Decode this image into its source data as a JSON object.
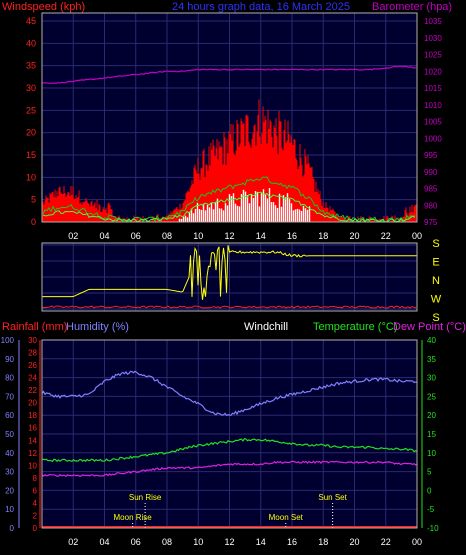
{
  "colors": {
    "wind": "#ff2020",
    "gust_fill": "#ff0000",
    "wind_green": "#20c020",
    "wind_white": "#ffffff",
    "barometer": "#c000c0",
    "title": "#3030ff",
    "direction": "#ffff00",
    "rain": "#ff2020",
    "humidity": "#8080ff",
    "temperature": "#20e020",
    "dewpoint": "#e020e0",
    "plot_bg": "#000030",
    "grid": "#2a2a70"
  },
  "top": {
    "title": "24 hours graph data, 16 March 2025",
    "left_label": "Windspeed (kph)",
    "right_label": "Barometer (hpa)"
  },
  "middle": {
    "direction_labels": [
      "S",
      "E",
      "N",
      "W",
      "S"
    ]
  },
  "bottom": {
    "rain_label": "Rainfall (mm)",
    "humidity_label": "Humidity (%)",
    "windchill_label": "Windchill",
    "temperature_label": "Temperature (°C)",
    "dewpoint_label": "Dew Point (°C)",
    "sun_rise": "Sun Rise",
    "sun_set": "Sun Set",
    "moon_rise": "Moon Rise",
    "moon_set": "Moon Set"
  },
  "chart_data": [
    {
      "type": "area",
      "title": "24 hours graph data, 16 March 2025",
      "ylabel": "Windspeed (kph)",
      "y2label": "Barometer (hpa)",
      "x_ticks": [
        "02",
        "04",
        "06",
        "08",
        "10",
        "12",
        "14",
        "16",
        "18",
        "20",
        "22",
        "00"
      ],
      "ylim": [
        0,
        45
      ],
      "y_ticks": [
        0,
        5,
        10,
        15,
        20,
        25,
        30,
        35,
        40,
        45
      ],
      "y2lim": [
        975,
        1035
      ],
      "y2_ticks": [
        975,
        980,
        985,
        990,
        995,
        1000,
        1005,
        1010,
        1015,
        1020,
        1025,
        1030,
        1035
      ],
      "hours": [
        0,
        1,
        2,
        3,
        4,
        5,
        6,
        7,
        8,
        9,
        10,
        11,
        12,
        13,
        14,
        15,
        16,
        17,
        18,
        19,
        20,
        21,
        22,
        23,
        24
      ],
      "series": [
        {
          "name": "Windspeed (kph)",
          "values": [
            3,
            5,
            5,
            3,
            1,
            0,
            0,
            0,
            1,
            3,
            9,
            11,
            13,
            15,
            17,
            15,
            13,
            9,
            3,
            1,
            0,
            0,
            0,
            0,
            2
          ]
        },
        {
          "name": "Barometer (hpa)",
          "values": [
            1016.5,
            1016.5,
            1017,
            1017.5,
            1018,
            1018.5,
            1019,
            1019.5,
            1020,
            1020,
            1020.5,
            1020.5,
            1020.5,
            1020.5,
            1020.5,
            1020.5,
            1020.5,
            1020.5,
            1020.5,
            1020.5,
            1020.5,
            1020.5,
            1021,
            1021.5,
            1021
          ]
        }
      ]
    },
    {
      "type": "line",
      "x_ticks": [
        "02",
        "04",
        "06",
        "08",
        "10",
        "12",
        "14",
        "16",
        "18",
        "20",
        "22",
        "00"
      ],
      "direction_axis": [
        "S",
        "E",
        "N",
        "W",
        "S"
      ],
      "hours": [
        0,
        1,
        2,
        3,
        4,
        5,
        6,
        7,
        8,
        9,
        10,
        11,
        12,
        13,
        14,
        15,
        16,
        17,
        18,
        19,
        20,
        21,
        22,
        23,
        24
      ],
      "series": [
        {
          "name": "Wind direction (deg)",
          "values": [
            70,
            70,
            70,
            110,
            110,
            110,
            110,
            110,
            110,
            95,
            300,
            300,
            320,
            320,
            320,
            320,
            300,
            300,
            300,
            300,
            300,
            300,
            300,
            300,
            300
          ]
        }
      ]
    },
    {
      "type": "line",
      "x_ticks": [
        "02",
        "04",
        "06",
        "08",
        "10",
        "12",
        "14",
        "16",
        "18",
        "20",
        "22",
        "00"
      ],
      "humidity_lim": [
        0,
        100
      ],
      "humidity_ticks": [
        0,
        10,
        20,
        30,
        40,
        50,
        60,
        70,
        80,
        90,
        100
      ],
      "rain_lim": [
        0,
        30
      ],
      "rain_ticks": [
        0,
        2,
        4,
        6,
        8,
        10,
        12,
        14,
        16,
        18,
        20,
        22,
        24,
        26,
        28,
        30
      ],
      "temp_lim": [
        -10,
        40
      ],
      "temp_ticks": [
        -10,
        -5,
        0,
        5,
        10,
        15,
        20,
        25,
        30,
        35,
        40
      ],
      "hours": [
        0,
        1,
        2,
        3,
        4,
        5,
        6,
        7,
        8,
        9,
        10,
        11,
        12,
        13,
        14,
        15,
        16,
        17,
        18,
        19,
        20,
        21,
        22,
        23,
        24
      ],
      "series": [
        {
          "name": "Humidity (%)",
          "values": [
            72,
            70,
            70,
            71,
            78,
            82,
            83,
            80,
            75,
            70,
            66,
            61,
            60,
            63,
            66,
            69,
            71,
            73,
            75,
            77,
            78,
            79,
            79,
            78,
            78
          ]
        },
        {
          "name": "Temperature (°C)",
          "values": [
            8,
            8,
            8,
            8,
            8,
            8.5,
            9,
            9.5,
            10,
            11,
            12,
            12.5,
            13,
            13.5,
            13.5,
            13,
            12.5,
            12,
            12,
            11.5,
            11.5,
            11.5,
            11,
            11,
            10.5
          ]
        },
        {
          "name": "Dew Point (°C)",
          "values": [
            4,
            4,
            4,
            4,
            4,
            4.5,
            5,
            5.5,
            6,
            6,
            6,
            6.5,
            7,
            7,
            7,
            7.5,
            7.5,
            7.5,
            7.5,
            7.5,
            7.5,
            7.5,
            7.5,
            7,
            7
          ]
        },
        {
          "name": "Rainfall (mm)",
          "values": [
            0,
            0,
            0,
            0,
            0,
            0,
            0,
            0,
            0,
            0,
            0,
            0,
            0,
            0,
            0,
            0,
            0,
            0,
            0,
            0,
            0,
            0,
            0,
            0,
            0
          ]
        }
      ],
      "events": [
        {
          "label": "Sun Rise",
          "hour": 6.6
        },
        {
          "label": "Sun Set",
          "hour": 18.6
        },
        {
          "label": "Moon Rise",
          "hour": 5.8
        },
        {
          "label": "Moon Set",
          "hour": 15.6
        }
      ]
    }
  ]
}
